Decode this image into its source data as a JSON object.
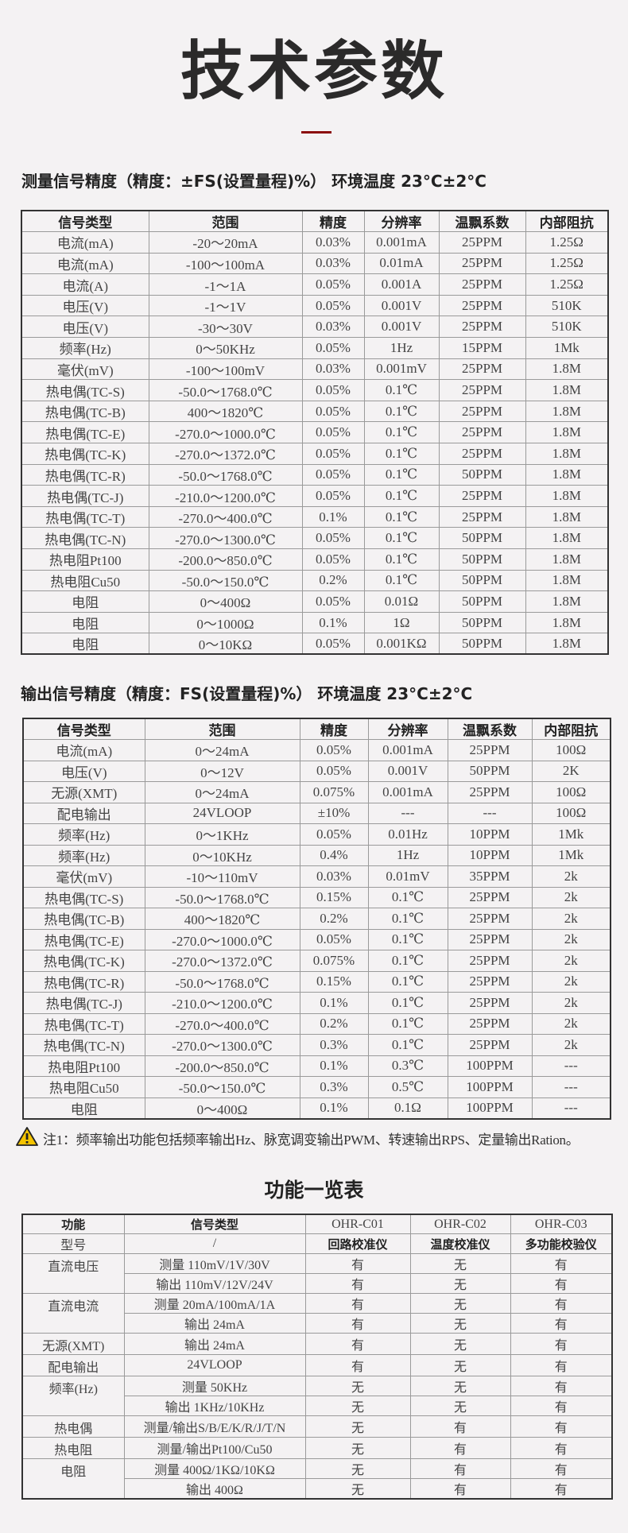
{
  "title": "技术参数",
  "colors": {
    "accent_rule": "#8b0d0d",
    "background": "#f4f2f3",
    "warning_icon": "#f5c400"
  },
  "measure": {
    "heading": "测量信号精度（精度：±FS(设置量程)%） 环境温度 23°C±2°C",
    "headers": [
      "信号类型",
      "范围",
      "精度",
      "分辨率",
      "温飘系数",
      "内部阻抗"
    ],
    "rows": [
      [
        "电流(mA)",
        "-20～20mA",
        "0.03%",
        "0.001mA",
        "25PPM",
        "1.25Ω"
      ],
      [
        "电流(mA)",
        "-100～100mA",
        "0.03%",
        "0.01mA",
        "25PPM",
        "1.25Ω"
      ],
      [
        "电流(A)",
        "-1～1A",
        "0.05%",
        "0.001A",
        "25PPM",
        "1.25Ω"
      ],
      [
        "电压(V)",
        "-1～1V",
        "0.05%",
        "0.001V",
        "25PPM",
        "510K"
      ],
      [
        "电压(V)",
        "-30～30V",
        "0.03%",
        "0.001V",
        "25PPM",
        "510K"
      ],
      [
        "频率(Hz)",
        "0～50KHz",
        "0.05%",
        "1Hz",
        "15PPM",
        "1Mk"
      ],
      [
        "毫伏(mV)",
        "-100～100mV",
        "0.03%",
        "0.001mV",
        "25PPM",
        "1.8M"
      ],
      [
        "热电偶(TC-S)",
        "-50.0～1768.0℃",
        "0.05%",
        "0.1℃",
        "25PPM",
        "1.8M"
      ],
      [
        "热电偶(TC-B)",
        "400～1820℃",
        "0.05%",
        "0.1℃",
        "25PPM",
        "1.8M"
      ],
      [
        "热电偶(TC-E)",
        "-270.0～1000.0℃",
        "0.05%",
        "0.1℃",
        "25PPM",
        "1.8M"
      ],
      [
        "热电偶(TC-K)",
        "-270.0～1372.0℃",
        "0.05%",
        "0.1℃",
        "25PPM",
        "1.8M"
      ],
      [
        "热电偶(TC-R)",
        "-50.0～1768.0℃",
        "0.05%",
        "0.1℃",
        "50PPM",
        "1.8M"
      ],
      [
        "热电偶(TC-J)",
        "-210.0～1200.0℃",
        "0.05%",
        "0.1℃",
        "25PPM",
        "1.8M"
      ],
      [
        "热电偶(TC-T)",
        "-270.0～400.0℃",
        "0.1%",
        "0.1℃",
        "25PPM",
        "1.8M"
      ],
      [
        "热电偶(TC-N)",
        "-270.0～1300.0℃",
        "0.05%",
        "0.1℃",
        "50PPM",
        "1.8M"
      ],
      [
        "热电阻Pt100",
        "-200.0～850.0℃",
        "0.05%",
        "0.1℃",
        "50PPM",
        "1.8M"
      ],
      [
        "热电阻Cu50",
        "-50.0～150.0℃",
        "0.2%",
        "0.1℃",
        "50PPM",
        "1.8M"
      ],
      [
        "电阻",
        "0～400Ω",
        "0.05%",
        "0.01Ω",
        "50PPM",
        "1.8M"
      ],
      [
        "电阻",
        "0～1000Ω",
        "0.1%",
        "1Ω",
        "50PPM",
        "1.8M"
      ],
      [
        "电阻",
        "0～10KΩ",
        "0.05%",
        "0.001KΩ",
        "50PPM",
        "1.8M"
      ]
    ]
  },
  "output": {
    "heading": "输出信号精度（精度：FS(设置量程)%） 环境温度 23°C±2°C",
    "headers": [
      "信号类型",
      "范围",
      "精度",
      "分辨率",
      "温飘系数",
      "内部阻抗"
    ],
    "rows": [
      [
        "电流(mA)",
        "0～24mA",
        "0.05%",
        "0.001mA",
        "25PPM",
        "100Ω"
      ],
      [
        "电压(V)",
        "0～12V",
        "0.05%",
        "0.001V",
        "50PPM",
        "2K"
      ],
      [
        "无源(XMT)",
        "0～24mA",
        "0.075%",
        "0.001mA",
        "25PPM",
        "100Ω"
      ],
      [
        "配电输出",
        "24VLOOP",
        "±10%",
        "---",
        "---",
        "100Ω"
      ],
      [
        "频率(Hz)",
        "0～1KHz",
        "0.05%",
        "0.01Hz",
        "10PPM",
        "1Mk"
      ],
      [
        "频率(Hz)",
        "0～10KHz",
        "0.4%",
        "1Hz",
        "10PPM",
        "1Mk"
      ],
      [
        "毫伏(mV)",
        "-10～110mV",
        "0.03%",
        "0.01mV",
        "35PPM",
        "2k"
      ],
      [
        "热电偶(TC-S)",
        "-50.0～1768.0℃",
        "0.15%",
        "0.1℃",
        "25PPM",
        "2k"
      ],
      [
        "热电偶(TC-B)",
        "400～1820℃",
        "0.2%",
        "0.1℃",
        "25PPM",
        "2k"
      ],
      [
        "热电偶(TC-E)",
        "-270.0～1000.0℃",
        "0.05%",
        "0.1℃",
        "25PPM",
        "2k"
      ],
      [
        "热电偶(TC-K)",
        "-270.0～1372.0℃",
        "0.075%",
        "0.1℃",
        "25PPM",
        "2k"
      ],
      [
        "热电偶(TC-R)",
        "-50.0～1768.0℃",
        "0.15%",
        "0.1℃",
        "25PPM",
        "2k"
      ],
      [
        "热电偶(TC-J)",
        "-210.0～1200.0℃",
        "0.1%",
        "0.1℃",
        "25PPM",
        "2k"
      ],
      [
        "热电偶(TC-T)",
        "-270.0～400.0℃",
        "0.2%",
        "0.1℃",
        "25PPM",
        "2k"
      ],
      [
        "热电偶(TC-N)",
        "-270.0～1300.0℃",
        "0.3%",
        "0.1℃",
        "25PPM",
        "2k"
      ],
      [
        "热电阻Pt100",
        "-200.0～850.0℃",
        "0.1%",
        "0.3℃",
        "100PPM",
        "---"
      ],
      [
        "热电阻Cu50",
        "-50.0～150.0℃",
        "0.3%",
        "0.5℃",
        "100PPM",
        "---"
      ],
      [
        "电阻",
        "0～400Ω",
        "0.1%",
        "0.1Ω",
        "100PPM",
        "---"
      ]
    ]
  },
  "note": {
    "icon": "warning-icon",
    "text": "注1：频率输出功能包括频率输出Hz、脉宽调变输出PWM、转速输出RPS、定量输出Ration。"
  },
  "functions": {
    "title": "功能一览表",
    "headers": [
      "功能",
      "信号类型",
      "OHR-C01",
      "OHR-C02",
      "OHR-C03"
    ],
    "model_row": [
      "型号",
      "/",
      "回路校准仪",
      "温度校准仪",
      "多功能校验仪"
    ],
    "groups": [
      {
        "func": "直流电压",
        "items": [
          [
            "测量 110mV/1V/30V",
            "有",
            "无",
            "有"
          ],
          [
            "输出 110mV/12V/24V",
            "有",
            "无",
            "有"
          ]
        ]
      },
      {
        "func": "直流电流",
        "items": [
          [
            "测量 20mA/100mA/1A",
            "有",
            "无",
            "有"
          ],
          [
            "输出 24mA",
            "有",
            "无",
            "有"
          ]
        ]
      },
      {
        "func": "无源(XMT)",
        "items": [
          [
            "输出 24mA",
            "有",
            "无",
            "有"
          ]
        ]
      },
      {
        "func": "配电输出",
        "items": [
          [
            "24VLOOP",
            "有",
            "无",
            "有"
          ]
        ]
      },
      {
        "func": "频率(Hz)",
        "items": [
          [
            "测量 50KHz",
            "无",
            "无",
            "有"
          ],
          [
            "输出 1KHz/10KHz",
            "无",
            "无",
            "有"
          ]
        ]
      },
      {
        "func": "热电偶",
        "items": [
          [
            "测量/输出S/B/E/K/R/J/T/N",
            "无",
            "有",
            "有"
          ]
        ]
      },
      {
        "func": "热电阻",
        "items": [
          [
            "测量/输出Pt100/Cu50",
            "无",
            "有",
            "有"
          ]
        ]
      },
      {
        "func": "电阻",
        "items": [
          [
            "测量 400Ω/1KΩ/10KΩ",
            "无",
            "有",
            "有"
          ],
          [
            "输出 400Ω",
            "无",
            "有",
            "有"
          ]
        ]
      }
    ]
  }
}
